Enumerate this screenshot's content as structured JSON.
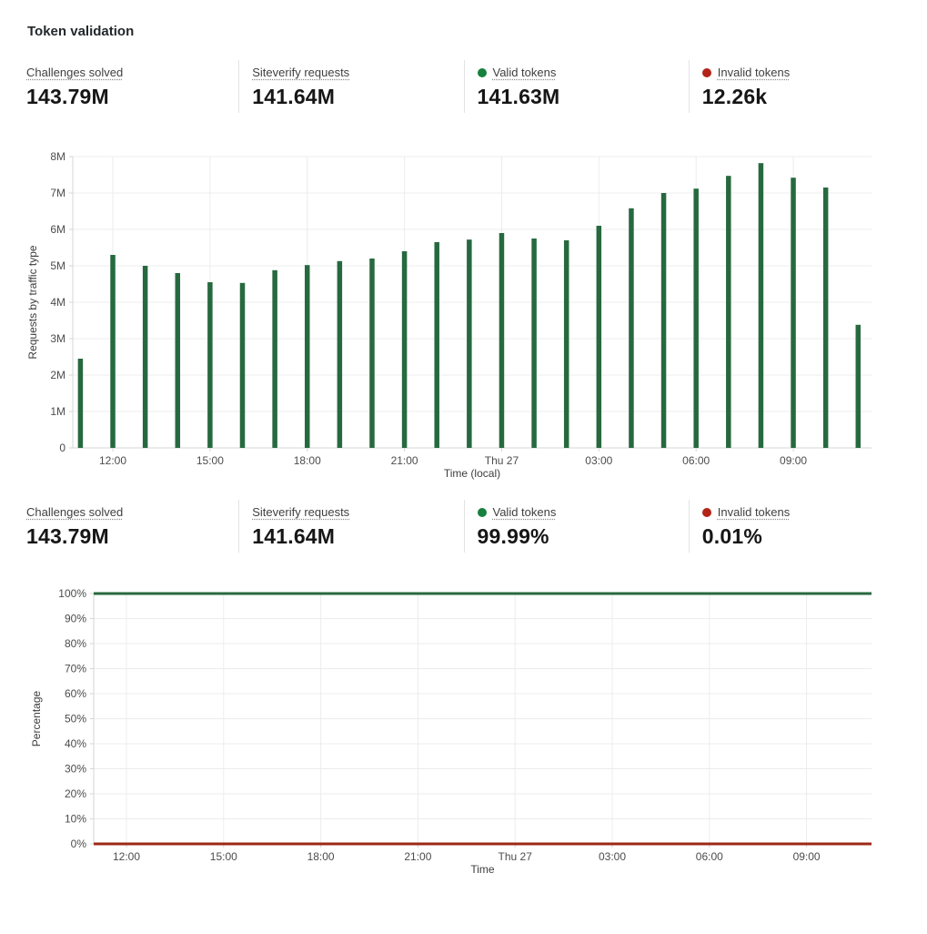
{
  "title": "Token validation",
  "colors": {
    "green": "#27693f",
    "red": "#9e2817",
    "dot_green": "#17803d",
    "dot_red": "#b32418",
    "grid": "#ececec",
    "axis": "#d6d6d6"
  },
  "stats_top": {
    "items": [
      {
        "label": "Challenges solved",
        "value": "143.79M"
      },
      {
        "label": "Siteverify requests",
        "value": "141.64M"
      },
      {
        "label": "Valid tokens",
        "value": "141.63M",
        "dot": "dot_green"
      },
      {
        "label": "Invalid tokens",
        "value": "12.26k",
        "dot": "dot_red"
      }
    ]
  },
  "stats_bottom": {
    "items": [
      {
        "label": "Challenges solved",
        "value": "143.79M"
      },
      {
        "label": "Siteverify requests",
        "value": "141.64M"
      },
      {
        "label": "Valid tokens",
        "value": "99.99%",
        "dot": "dot_green"
      },
      {
        "label": "Invalid tokens",
        "value": "0.01%",
        "dot": "dot_red"
      }
    ]
  },
  "chart_data": [
    {
      "type": "bar",
      "title": "",
      "ylabel": "Requests by traffic type",
      "xlabel": "Time (local)",
      "ylim": [
        0,
        8000000
      ],
      "ytick_labels": [
        "0",
        "1M",
        "2M",
        "3M",
        "4M",
        "5M",
        "6M",
        "7M",
        "8M"
      ],
      "grid": true,
      "legend": "none",
      "bar_color_key": "green",
      "values_millions": [
        2.45,
        5.3,
        5.0,
        4.8,
        4.55,
        4.53,
        4.88,
        5.02,
        5.13,
        5.2,
        5.4,
        5.65,
        5.72,
        5.9,
        5.75,
        5.7,
        6.1,
        6.58,
        7.0,
        7.12,
        7.47,
        7.82,
        7.42,
        7.15,
        3.38
      ],
      "xticks": [
        {
          "index": 1,
          "label": "12:00"
        },
        {
          "index": 4,
          "label": "15:00"
        },
        {
          "index": 7,
          "label": "18:00"
        },
        {
          "index": 10,
          "label": "21:00"
        },
        {
          "index": 13,
          "label": "Thu 27"
        },
        {
          "index": 16,
          "label": "03:00"
        },
        {
          "index": 19,
          "label": "06:00"
        },
        {
          "index": 22,
          "label": "09:00"
        }
      ]
    },
    {
      "type": "line",
      "title": "",
      "ylabel": "Percentage",
      "xlabel": "Time",
      "ylim": [
        0,
        100
      ],
      "ytick_labels": [
        "0%",
        "10%",
        "20%",
        "30%",
        "40%",
        "50%",
        "60%",
        "70%",
        "80%",
        "90%",
        "100%"
      ],
      "grid": true,
      "legend": "none",
      "series": [
        {
          "name": "Valid tokens",
          "value_percent": 99.99,
          "color_key": "green"
        },
        {
          "name": "Invalid tokens",
          "value_percent": 0.01,
          "color_key": "red"
        }
      ],
      "xticks": [
        {
          "index": 1,
          "label": "12:00"
        },
        {
          "index": 4,
          "label": "15:00"
        },
        {
          "index": 7,
          "label": "18:00"
        },
        {
          "index": 10,
          "label": "21:00"
        },
        {
          "index": 13,
          "label": "Thu 27"
        },
        {
          "index": 16,
          "label": "03:00"
        },
        {
          "index": 19,
          "label": "06:00"
        },
        {
          "index": 22,
          "label": "09:00"
        }
      ]
    }
  ]
}
